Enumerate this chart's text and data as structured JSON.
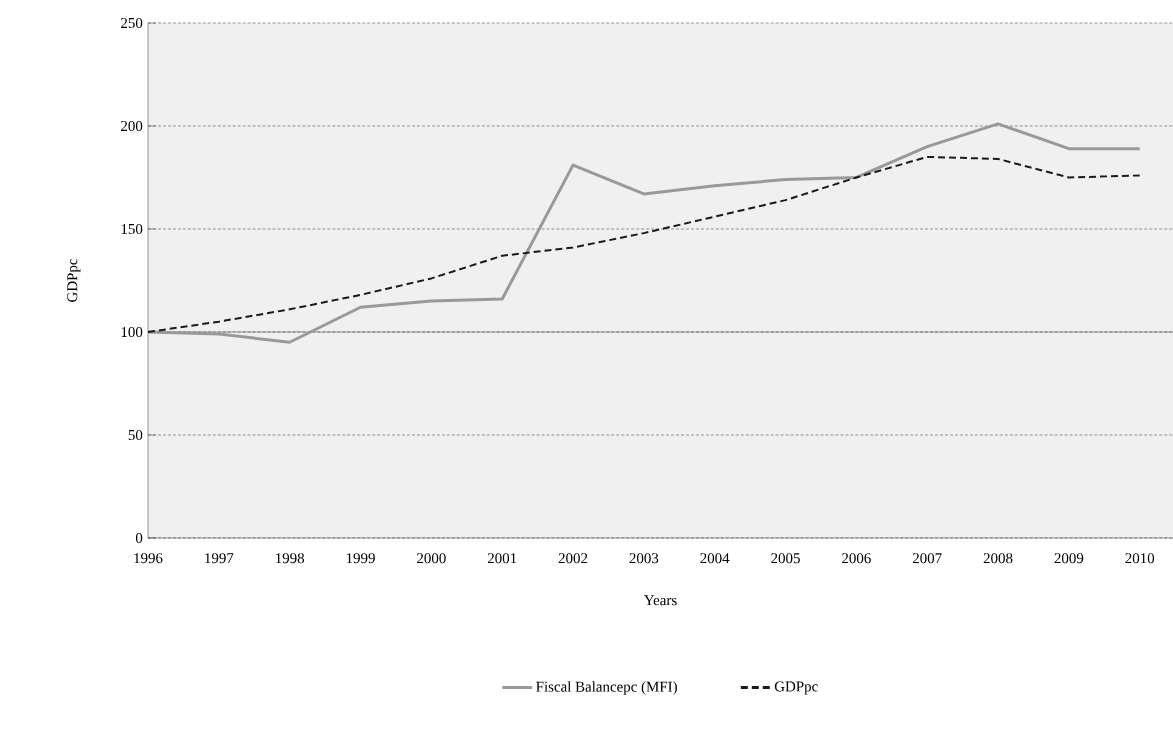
{
  "chart_data": {
    "type": "line",
    "xlabel": "Years",
    "ylabel": "GDPpc",
    "categories": [
      "1996",
      "1997",
      "1998",
      "1999",
      "2000",
      "2001",
      "2002",
      "2003",
      "2004",
      "2005",
      "2006",
      "2007",
      "2008",
      "2009",
      "2010"
    ],
    "series": [
      {
        "name": "Fiscal Balancepc (MFI)",
        "color": "#999999",
        "line_style": "solid",
        "values": [
          100,
          99,
          95,
          112,
          115,
          116,
          181,
          167,
          171,
          174,
          175,
          190,
          201,
          189,
          189
        ]
      },
      {
        "name": "GDPpc",
        "color": "#1a1a1a",
        "line_style": "dashed",
        "values": [
          100,
          105,
          111,
          118,
          126,
          137,
          141,
          148,
          156,
          164,
          175,
          185,
          184,
          175,
          176
        ]
      }
    ],
    "ylim": [
      0,
      250
    ],
    "yticks": [
      0,
      50,
      100,
      150,
      200,
      250
    ],
    "grid": "y",
    "legend": "bottom",
    "marker": "none",
    "ref_lines": [
      {
        "axis": "y",
        "value": 100,
        "color": "#1a1a1a",
        "line_style": "solid"
      }
    ]
  }
}
